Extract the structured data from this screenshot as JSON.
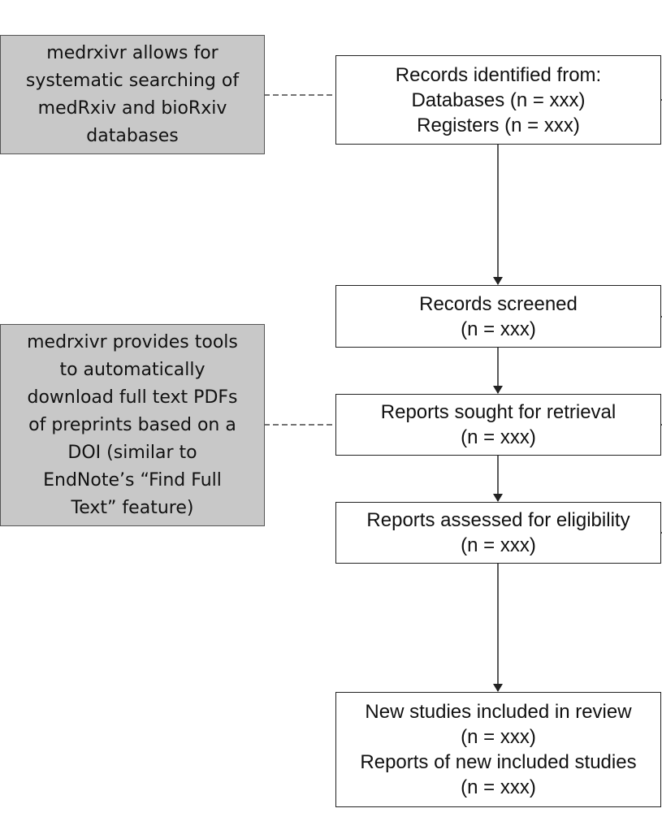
{
  "notes": {
    "search": {
      "lines": [
        "medrxivr allows for",
        "systematic searching of",
        "medRxiv and bioRxiv",
        "databases"
      ]
    },
    "download": {
      "lines": [
        "medrxivr provides tools",
        "to automatically",
        "download full text PDFs",
        "of preprints based on a",
        "DOI (similar to",
        "EndNote’s “Find Full",
        "Text” feature)"
      ]
    }
  },
  "boxes": {
    "identified": {
      "lines": [
        "Records identified from:",
        "Databases (n = xxx)",
        "Registers (n = xxx)"
      ]
    },
    "screened": {
      "lines": [
        "Records screened",
        "(n = xxx)"
      ]
    },
    "sought": {
      "lines": [
        "Reports sought for retrieval",
        "(n = xxx)"
      ]
    },
    "assessed": {
      "lines": [
        "Reports assessed for eligibility",
        "(n = xxx)"
      ]
    },
    "included": {
      "lines": [
        "New studies included in review",
        "(n = xxx)",
        "Reports of new included studies",
        "(n = xxx)"
      ]
    }
  },
  "colors": {
    "note_fill": "#c8c8c8",
    "line": "#222222"
  }
}
